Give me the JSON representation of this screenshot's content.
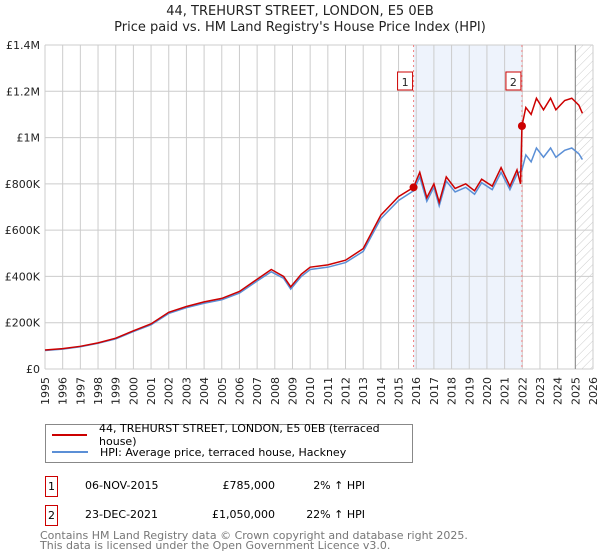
{
  "title": "44, TREHURST STREET, LONDON, E5 0EB",
  "subtitle": "Price paid vs. HM Land Registry's House Price Index (HPI)",
  "chart_data": {
    "type": "line",
    "ylim": [
      0,
      1400000
    ],
    "xlim": [
      1995,
      2026
    ],
    "y_ticks": [
      {
        "v": 0,
        "label": "£0"
      },
      {
        "v": 200000,
        "label": "£200K"
      },
      {
        "v": 400000,
        "label": "£400K"
      },
      {
        "v": 600000,
        "label": "£600K"
      },
      {
        "v": 800000,
        "label": "£800K"
      },
      {
        "v": 1000000,
        "label": "£1M"
      },
      {
        "v": 1200000,
        "label": "£1.2M"
      },
      {
        "v": 1400000,
        "label": "£1.4M"
      }
    ],
    "x_ticks": [
      "1995",
      "1996",
      "1997",
      "1998",
      "1999",
      "2000",
      "2001",
      "2002",
      "2003",
      "2004",
      "2005",
      "2006",
      "2007",
      "2008",
      "2009",
      "2010",
      "2011",
      "2012",
      "2013",
      "2014",
      "2015",
      "2016",
      "2017",
      "2018",
      "2019",
      "2020",
      "2021",
      "2022",
      "2023",
      "2024",
      "2025",
      "2026"
    ],
    "grid": true,
    "series": [
      {
        "name": "44, TREHURST STREET, LONDON, E5 0EB (terraced house)",
        "color": "#cc0000",
        "points": [
          [
            1995,
            82
          ],
          [
            1996,
            88
          ],
          [
            1997,
            98
          ],
          [
            1998,
            113
          ],
          [
            1999,
            133
          ],
          [
            2000,
            165
          ],
          [
            2001,
            195
          ],
          [
            2002,
            245
          ],
          [
            2003,
            270
          ],
          [
            2004,
            290
          ],
          [
            2005,
            305
          ],
          [
            2006,
            335
          ],
          [
            2007,
            388
          ],
          [
            2007.8,
            430
          ],
          [
            2008.5,
            400
          ],
          [
            2008.9,
            355
          ],
          [
            2009.5,
            410
          ],
          [
            2010,
            440
          ],
          [
            2011,
            450
          ],
          [
            2012,
            470
          ],
          [
            2013,
            520
          ],
          [
            2014,
            665
          ],
          [
            2015,
            745
          ],
          [
            2015.85,
            785
          ],
          [
            2016.2,
            850
          ],
          [
            2016.6,
            740
          ],
          [
            2017,
            800
          ],
          [
            2017.3,
            720
          ],
          [
            2017.7,
            830
          ],
          [
            2018.2,
            780
          ],
          [
            2018.8,
            800
          ],
          [
            2019.3,
            770
          ],
          [
            2019.7,
            820
          ],
          [
            2020.3,
            790
          ],
          [
            2020.8,
            870
          ],
          [
            2021.3,
            790
          ],
          [
            2021.7,
            860
          ],
          [
            2021.9,
            800
          ],
          [
            2021.98,
            1050
          ],
          [
            2022.2,
            1130
          ],
          [
            2022.5,
            1100
          ],
          [
            2022.8,
            1170
          ],
          [
            2023.2,
            1120
          ],
          [
            2023.6,
            1170
          ],
          [
            2023.9,
            1120
          ],
          [
            2024.4,
            1160
          ],
          [
            2024.8,
            1170
          ],
          [
            2025.2,
            1140
          ],
          [
            2025.4,
            1105
          ]
        ]
      },
      {
        "name": "HPI: Average price, terraced house, Hackney",
        "color": "#5b8fd6",
        "points": [
          [
            1995,
            80
          ],
          [
            1996,
            86
          ],
          [
            1997,
            96
          ],
          [
            1998,
            111
          ],
          [
            1999,
            130
          ],
          [
            2000,
            162
          ],
          [
            2001,
            191
          ],
          [
            2002,
            240
          ],
          [
            2003,
            265
          ],
          [
            2004,
            284
          ],
          [
            2005,
            299
          ],
          [
            2006,
            328
          ],
          [
            2007,
            380
          ],
          [
            2007.8,
            420
          ],
          [
            2008.5,
            392
          ],
          [
            2008.9,
            345
          ],
          [
            2009.5,
            400
          ],
          [
            2010,
            430
          ],
          [
            2011,
            440
          ],
          [
            2012,
            460
          ],
          [
            2013,
            508
          ],
          [
            2014,
            650
          ],
          [
            2015,
            728
          ],
          [
            2015.85,
            770
          ],
          [
            2016.2,
            830
          ],
          [
            2016.6,
            725
          ],
          [
            2017,
            785
          ],
          [
            2017.3,
            705
          ],
          [
            2017.7,
            812
          ],
          [
            2018.2,
            765
          ],
          [
            2018.8,
            785
          ],
          [
            2019.3,
            755
          ],
          [
            2019.7,
            805
          ],
          [
            2020.3,
            775
          ],
          [
            2020.8,
            850
          ],
          [
            2021.3,
            775
          ],
          [
            2021.7,
            842
          ],
          [
            2021.98,
            860
          ],
          [
            2022.2,
            925
          ],
          [
            2022.5,
            895
          ],
          [
            2022.8,
            955
          ],
          [
            2023.2,
            915
          ],
          [
            2023.6,
            955
          ],
          [
            2023.9,
            915
          ],
          [
            2024.4,
            945
          ],
          [
            2024.8,
            955
          ],
          [
            2025.2,
            930
          ],
          [
            2025.4,
            905
          ]
        ]
      }
    ],
    "value_unit": "thousands GBP",
    "sales": [
      {
        "label": "1",
        "x": 2015.85,
        "value": 785000
      },
      {
        "label": "2",
        "x": 2021.98,
        "value": 1050000
      }
    ],
    "shaded_range": [
      2015.85,
      2021.98
    ],
    "hatched_from": 2025.0
  },
  "legend": {
    "items": [
      "44, TREHURST STREET, LONDON, E5 0EB (terraced house)",
      "HPI: Average price, terraced house, Hackney"
    ]
  },
  "transactions": [
    {
      "num": "1",
      "date": "06-NOV-2015",
      "price": "£785,000",
      "hpi": "2% ↑ HPI"
    },
    {
      "num": "2",
      "date": "23-DEC-2021",
      "price": "£1,050,000",
      "hpi": "22% ↑ HPI"
    }
  ],
  "footer": [
    "Contains HM Land Registry data © Crown copyright and database right 2025.",
    "This data is licensed under the Open Government Licence v3.0."
  ]
}
